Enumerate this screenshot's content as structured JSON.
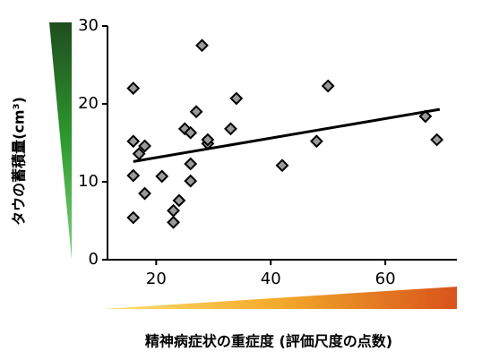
{
  "chart_data": {
    "type": "scatter",
    "x_label": "精神病症状の重症度 (評価尺度の点数)",
    "y_label": "タウの蓄積量(cm³)",
    "x": [
      16,
      16,
      17,
      18,
      16,
      18,
      16,
      21,
      23,
      23,
      24,
      25,
      26,
      26,
      26,
      27,
      28,
      29,
      29,
      33,
      34,
      42,
      48,
      50,
      67,
      69
    ],
    "y": [
      22,
      15.2,
      13.6,
      14.6,
      10.8,
      8.5,
      5.4,
      10.7,
      6.3,
      4.8,
      7.6,
      16.8,
      16.3,
      12.3,
      10.1,
      19,
      27.5,
      14.9,
      15.4,
      16.8,
      20.7,
      12.1,
      15.2,
      22.3,
      18.4,
      15.4
    ],
    "color": "#9a9a9a",
    "trend": {
      "x": [
        16,
        69.5
      ],
      "y": [
        12.6,
        19.3
      ],
      "color": "#000000"
    },
    "xlim": [
      11.5,
      72.5
    ],
    "ylim": [
      0,
      30
    ],
    "xticks": [
      20,
      40,
      60
    ],
    "yticks": [
      0,
      10,
      20,
      30
    ]
  }
}
